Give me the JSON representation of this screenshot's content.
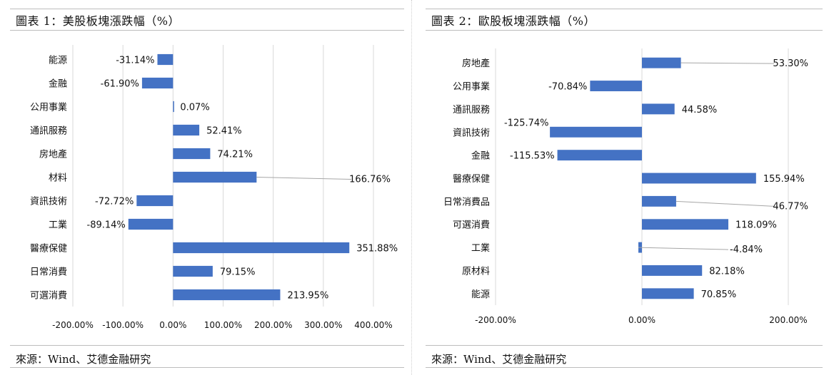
{
  "colors": {
    "bar": "#4472c4",
    "grid": "#d9d9d9",
    "leader": "#a6a6a6",
    "frame": "#bdbdbd"
  },
  "panels": [
    {
      "title": "圖表 1：美股板塊漲跌幅（%）",
      "source": "來源：Wind、艾德金融研究"
    },
    {
      "title": "圖表 2：歐股板塊漲跌幅（%）",
      "source": "來源：Wind、艾德金融研究"
    }
  ],
  "chart_data": [
    {
      "type": "bar",
      "orientation": "horizontal",
      "categories": [
        "能源",
        "金融",
        "公用事業",
        "通訊服務",
        "房地產",
        "材料",
        "資訊技術",
        "工業",
        "醫療保健",
        "日常消費",
        "可選消費"
      ],
      "values": [
        -31.14,
        -61.9,
        0.07,
        52.41,
        74.21,
        166.76,
        -72.72,
        -89.14,
        351.88,
        79.15,
        213.95
      ],
      "data_labels": [
        "-31.14%",
        "-61.90%",
        "0.07%",
        "52.41%",
        "74.21%",
        "166.76%",
        "-72.72%",
        "-89.14%",
        "351.88%",
        "79.15%",
        "213.95%"
      ],
      "xlim": [
        -200,
        400
      ],
      "xticks": [
        -200,
        -100,
        0,
        100,
        200,
        300,
        400
      ],
      "xtick_labels": [
        "-200.00%",
        "-100.00%",
        "0.00%",
        "100.00%",
        "200.00%",
        "300.00%",
        "400.00%"
      ],
      "grid": true,
      "legend": "none"
    },
    {
      "type": "bar",
      "orientation": "horizontal",
      "categories": [
        "房地產",
        "公用事業",
        "通訊服務",
        "資訊技術",
        "金融",
        "醫療保健",
        "日常消費品",
        "可選消費",
        "工業",
        "原材料",
        "能源"
      ],
      "values": [
        53.3,
        -70.84,
        44.58,
        -125.74,
        -115.53,
        155.94,
        46.77,
        118.09,
        -4.84,
        82.18,
        70.85
      ],
      "data_labels": [
        "53.30%",
        "-70.84%",
        "44.58%",
        "-125.74%",
        "-115.53%",
        "155.94%",
        "46.77%",
        "118.09%",
        "-4.84%",
        "82.18%",
        "70.85%"
      ],
      "xlim": [
        -200,
        200
      ],
      "xticks": [
        -200,
        0,
        200
      ],
      "xtick_labels": [
        "-200.00%",
        "0.00%",
        "200.00%"
      ],
      "grid": true,
      "legend": "none"
    }
  ]
}
